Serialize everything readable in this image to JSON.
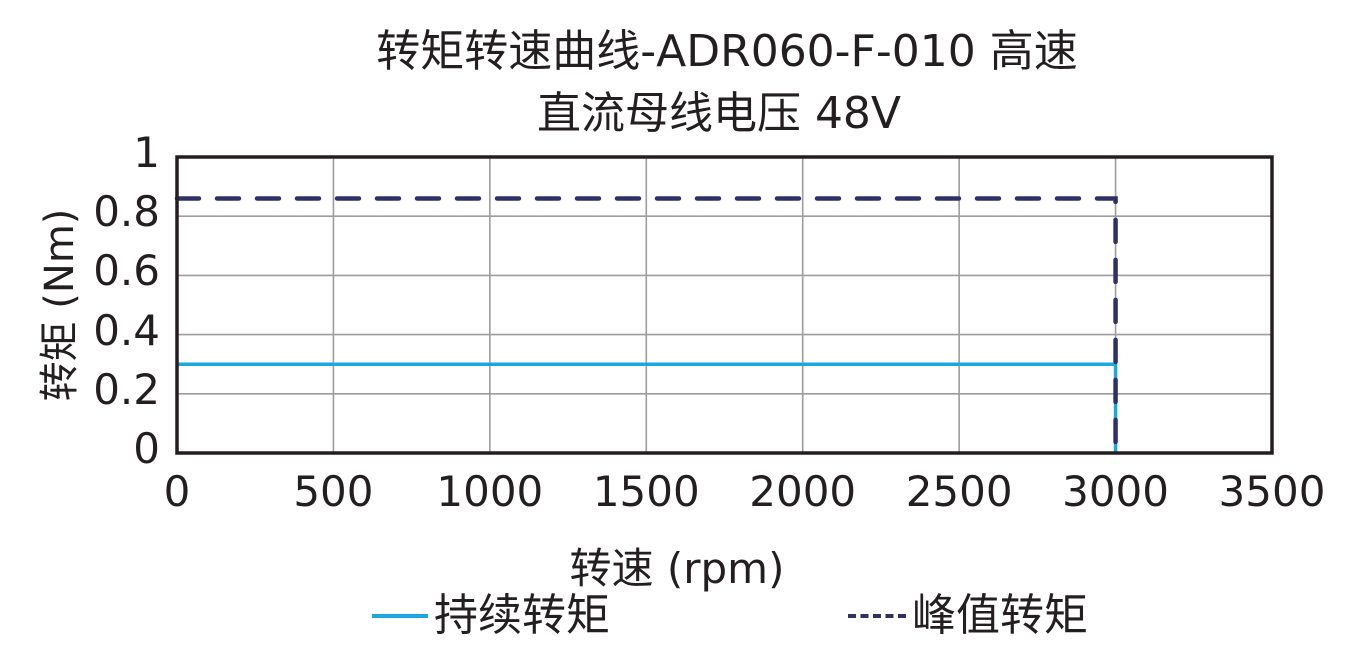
{
  "title": {
    "line1": "转矩转速曲线-ADR060-F-010 高速",
    "line2": "直流母线电压 48V"
  },
  "axes": {
    "ylabel": "转矩 (Nm)",
    "xlabel": "转速 (rpm)",
    "yticks": [
      "0",
      "0.2",
      "0.4",
      "0.6",
      "0.8",
      "1"
    ],
    "xticks": [
      "0",
      "500",
      "1000",
      "1500",
      "2000",
      "2500",
      "3000",
      "3500"
    ]
  },
  "legend": {
    "continuous": "持续转矩",
    "peak": "峰值转矩"
  },
  "colors": {
    "continuous": "#1ba9dd",
    "peak": "#2f3166",
    "grid": "#9d9d9d",
    "frame": "#231f20"
  },
  "chart_data": {
    "type": "line",
    "title": "转矩转速曲线-ADR060-F-010 高速 直流母线电压 48V",
    "xlabel": "转速 (rpm)",
    "ylabel": "转矩 (Nm)",
    "xlim": [
      0,
      3500
    ],
    "ylim": [
      0,
      1
    ],
    "xticks": [
      0,
      500,
      1000,
      1500,
      2000,
      2500,
      3000,
      3500
    ],
    "yticks": [
      0,
      0.2,
      0.4,
      0.6,
      0.8,
      1
    ],
    "grid": true,
    "legend_position": "bottom",
    "series": [
      {
        "name": "持续转矩",
        "style": "solid",
        "color": "#1ba9dd",
        "x": [
          0,
          3000,
          3000
        ],
        "y": [
          0.3,
          0.3,
          0
        ]
      },
      {
        "name": "峰值转矩",
        "style": "dashed",
        "color": "#2f3166",
        "x": [
          0,
          3000,
          3000
        ],
        "y": [
          0.86,
          0.86,
          0
        ]
      }
    ]
  }
}
